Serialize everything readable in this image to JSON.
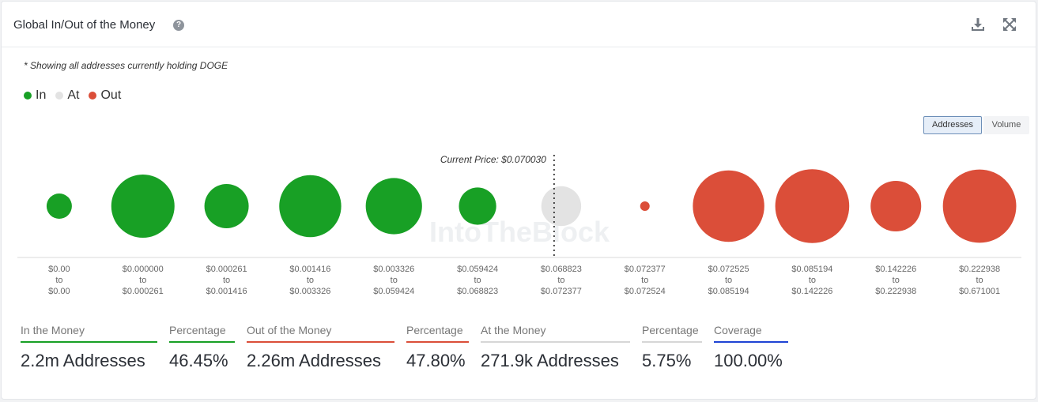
{
  "header": {
    "title": "Global In/Out of the Money",
    "help_icon": "question-circle-icon",
    "download_icon": "download-icon",
    "expand_icon": "expand-icon"
  },
  "note": "* Showing all addresses currently holding DOGE",
  "legend": [
    {
      "label": "In",
      "color": "#18a025"
    },
    {
      "label": "At",
      "color": "#e3e3e3"
    },
    {
      "label": "Out",
      "color": "#db4e39"
    }
  ],
  "toggles": {
    "addresses": "Addresses",
    "volume": "Volume",
    "active": "addresses"
  },
  "watermark": "IntoTheBlock",
  "chart_data": {
    "type": "bubble",
    "size_metric": "Addresses",
    "current_price_label": "Current Price: $0.070030",
    "current_price": 0.07003,
    "range_connector": "to",
    "buckets": [
      {
        "from": "$0.00",
        "to": "$0.00",
        "status": "in",
        "size": 0.4
      },
      {
        "from": "$0.000000",
        "to": "$0.000261",
        "status": "in",
        "size": 1.0
      },
      {
        "from": "$0.000261",
        "to": "$0.001416",
        "status": "in",
        "size": 0.7
      },
      {
        "from": "$0.001416",
        "to": "$0.003326",
        "status": "in",
        "size": 0.98
      },
      {
        "from": "$0.003326",
        "to": "$0.059424",
        "status": "in",
        "size": 0.89
      },
      {
        "from": "$0.059424",
        "to": "$0.068823",
        "status": "in",
        "size": 0.59
      },
      {
        "from": "$0.068823",
        "to": "$0.072377",
        "status": "at",
        "size": 0.63
      },
      {
        "from": "$0.072377",
        "to": "$0.072524",
        "status": "out",
        "size": 0.06
      },
      {
        "from": "$0.072525",
        "to": "$0.085194",
        "status": "out",
        "size": 1.13
      },
      {
        "from": "$0.085194",
        "to": "$0.142226",
        "status": "out",
        "size": 1.17
      },
      {
        "from": "$0.142226",
        "to": "$0.222938",
        "status": "out",
        "size": 0.8
      },
      {
        "from": "$0.222938",
        "to": "$0.671001",
        "status": "out",
        "size": 1.16
      }
    ]
  },
  "stats": [
    {
      "label": "In the Money",
      "value": "2.2m Addresses",
      "color": "#18a025"
    },
    {
      "label": "Percentage",
      "value": "46.45%",
      "color": "#18a025"
    },
    {
      "label": "Out of the Money",
      "value": "2.26m Addresses",
      "color": "#db4e39"
    },
    {
      "label": "Percentage",
      "value": "47.80%",
      "color": "#db4e39"
    },
    {
      "label": "At the Money",
      "value": "271.9k Addresses",
      "color": "#d6d6d6"
    },
    {
      "label": "Percentage",
      "value": "5.75%",
      "color": "#d6d6d6"
    },
    {
      "label": "Coverage",
      "value": "100.00%",
      "color": "#1f44d4"
    }
  ]
}
